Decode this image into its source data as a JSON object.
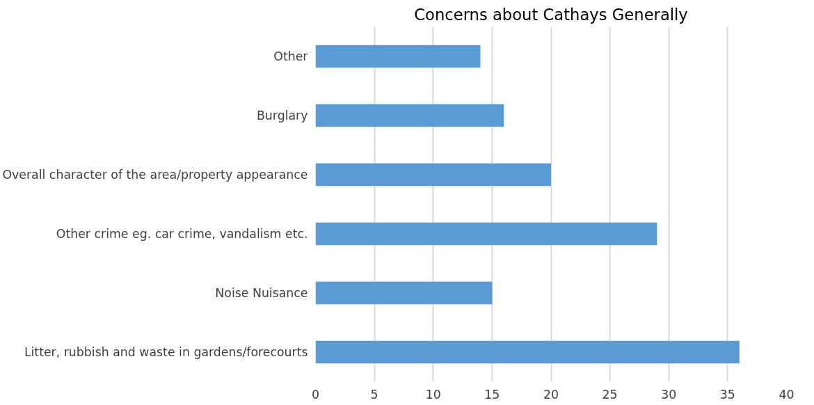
{
  "chart_data": {
    "type": "bar",
    "orientation": "horizontal",
    "title": "Concerns about Cathays Generally",
    "categories": [
      "Other",
      "Burglary",
      "Overall character of the area/property appearance",
      "Other crime eg. car crime, vandalism etc.",
      "Noise Nuisance",
      "Litter, rubbish and waste in gardens/forecourts"
    ],
    "values": [
      14,
      16,
      20,
      29,
      15,
      36
    ],
    "color": "#5b9bd5",
    "xlim": [
      0,
      40
    ],
    "xticks": [
      0,
      5,
      10,
      15,
      20,
      25,
      30,
      35,
      40
    ],
    "grid": "x"
  }
}
